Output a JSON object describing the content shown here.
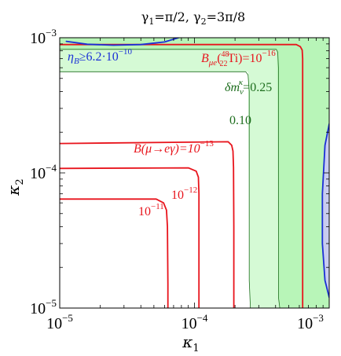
{
  "chart_data": {
    "type": "contour",
    "title_parts": {
      "g1": "γ",
      "s1": "1",
      "v1": "=π/2, ",
      "g2": "γ",
      "s2": "2",
      "v2": "=3π/8"
    },
    "xlabel": {
      "base": "κ",
      "sub": "1"
    },
    "ylabel": {
      "base": "κ",
      "sub": "2"
    },
    "xscale": "log",
    "yscale": "log",
    "xlim": [
      1e-05,
      0.001
    ],
    "ylim": [
      1e-05,
      0.001
    ],
    "xticks": [
      {
        "value": 1e-05,
        "base": "10",
        "exp": "−5"
      },
      {
        "value": 0.0001,
        "base": "10",
        "exp": "−4"
      },
      {
        "value": 0.001,
        "base": "10",
        "exp": "−3"
      }
    ],
    "yticks": [
      {
        "value": 1e-05,
        "base": "10",
        "exp": "−5"
      },
      {
        "value": 0.0001,
        "base": "10",
        "exp": "−4"
      },
      {
        "value": 0.001,
        "base": "10",
        "exp": "−3"
      }
    ],
    "colors": {
      "light_green": "#d5fad5",
      "mid_green": "#b8f5b8",
      "light_blue": "#c8ccf0",
      "red": "#e8141c",
      "blue": "#1a2fd6",
      "dark_green": "#1e6e1e"
    },
    "regions": [
      {
        "name": "dmk-0.10",
        "color": "light_green",
        "points": [
          [
            1e-05,
            0.00056
          ],
          [
            0.00025,
            0.00056
          ],
          [
            0.000255,
            1.6e-05
          ],
          [
            0.00026,
            1e-05
          ],
          [
            0.001,
            1e-05
          ],
          [
            0.001,
            0.001
          ],
          [
            1e-05,
            0.001
          ]
        ]
      },
      {
        "name": "dmk-0.25",
        "color": "mid_green",
        "points": [
          [
            1e-05,
            0.00082
          ],
          [
            0.00041,
            0.00082
          ],
          [
            0.00042,
            1.2e-05
          ],
          [
            0.00043,
            1e-05
          ],
          [
            0.001,
            1e-05
          ],
          [
            0.001,
            0.001
          ],
          [
            1e-05,
            0.001
          ]
        ]
      },
      {
        "name": "etaB-right",
        "color": "light_blue",
        "points": [
          [
            0.001,
            0.00023
          ],
          [
            0.00093,
            0.00016
          ],
          [
            0.00089,
            7e-05
          ],
          [
            0.00089,
            3e-05
          ],
          [
            0.00093,
            1.6e-05
          ],
          [
            0.001,
            1.2e-05
          ]
        ]
      }
    ],
    "lines": [
      {
        "name": "contour-dmk-0.10",
        "color": "dark_green",
        "width": 0.8,
        "points": [
          [
            1e-05,
            0.00056
          ],
          [
            0.00024,
            0.00056
          ],
          [
            0.00025,
            0.00053
          ],
          [
            0.000255,
            0.0004
          ],
          [
            0.000255,
            1.6e-05
          ],
          [
            0.00026,
            1e-05
          ]
        ]
      },
      {
        "name": "contour-dmk-0.25",
        "color": "dark_green",
        "width": 0.8,
        "points": [
          [
            1e-05,
            0.00082
          ],
          [
            0.000405,
            0.00082
          ],
          [
            0.000415,
            0.00078
          ],
          [
            0.00042,
            0.0006
          ],
          [
            0.00042,
            1.2e-05
          ],
          [
            0.00043,
            1e-05
          ]
        ]
      },
      {
        "name": "contour-B-mue-1e-16",
        "color": "red",
        "width": 1.8,
        "points": [
          [
            1e-05,
            0.00089
          ],
          [
            0.00057,
            0.00089
          ],
          [
            0.00061,
            0.00086
          ],
          [
            0.00063,
            0.00081
          ],
          [
            0.000635,
            0.0007
          ],
          [
            0.000635,
            1e-05
          ]
        ]
      },
      {
        "name": "contour-B-mueg-1e-13",
        "color": "red",
        "width": 1.8,
        "points": [
          [
            1e-05,
            0.000165
          ],
          [
            0.000178,
            0.00017
          ],
          [
            0.000189,
            0.00016
          ],
          [
            0.000193,
            0.000145
          ],
          [
            0.000195,
            0.00011
          ],
          [
            0.000196,
            4e-05
          ],
          [
            0.000196,
            1e-05
          ]
        ]
      },
      {
        "name": "contour-B-mueg-1e-12",
        "color": "red",
        "width": 1.8,
        "points": [
          [
            1e-05,
            0.000108
          ],
          [
            9e-05,
            0.000109
          ],
          [
            0.000103,
            0.000103
          ],
          [
            0.000107,
            9.3e-05
          ],
          [
            0.000108,
            7e-05
          ],
          [
            0.000108,
            3e-05
          ],
          [
            0.000108,
            1e-05
          ]
        ]
      },
      {
        "name": "contour-B-mueg-1e-11",
        "color": "red",
        "width": 1.8,
        "points": [
          [
            1e-05,
            6.4e-05
          ],
          [
            5.2e-05,
            6.4e-05
          ],
          [
            5.9e-05,
            6e-05
          ],
          [
            6.2e-05,
            5.3e-05
          ],
          [
            6.3e-05,
            4e-05
          ],
          [
            6.35e-05,
            1.5e-05
          ],
          [
            6.35e-05,
            1e-05
          ]
        ]
      },
      {
        "name": "contour-etaB-top",
        "color": "blue",
        "width": 1.8,
        "points": [
          [
            1.12e-05,
            0.00094
          ],
          [
            1.6e-05,
            0.000895
          ],
          [
            2.5e-05,
            0.00088
          ],
          [
            4e-05,
            0.00089
          ],
          [
            6e-05,
            0.00093
          ],
          [
            7.6e-05,
            0.001
          ]
        ]
      },
      {
        "name": "contour-etaB-right",
        "color": "blue",
        "width": 1.8,
        "points": [
          [
            0.001,
            0.00023
          ],
          [
            0.00093,
            0.00016
          ],
          [
            0.00089,
            7e-05
          ],
          [
            0.00089,
            3e-05
          ],
          [
            0.00093,
            1.6e-05
          ],
          [
            0.001,
            1.2e-05
          ]
        ]
      }
    ],
    "annotations": {
      "etaB": {
        "a": "η",
        "sub": "B",
        "b": "≥6.2·10",
        "sup": "−10"
      },
      "bmue": {
        "a": "B",
        "sub": "μe",
        "b": "(",
        "presup": "48",
        "presub": "22",
        "c": "Ti)=10",
        "sup": "−16"
      },
      "dmk": {
        "a": "δm",
        "sub": "ν",
        "sup": "κ",
        "b": "=0.25"
      },
      "dmk010": {
        "text": "0.10"
      },
      "bmueg": {
        "text": "B(μ→eγ)=10",
        "sup": "−13"
      },
      "b12": {
        "base": "10",
        "sup": "−12"
      },
      "b11": {
        "base": "10",
        "sup": "−11"
      }
    }
  }
}
